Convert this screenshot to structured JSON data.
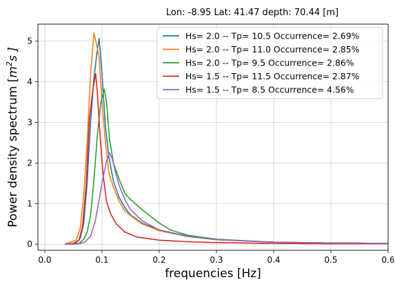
{
  "chart_data": {
    "type": "line",
    "title": "Lon: -8.95 Lat: 41.47 depth: 70.44 [m]",
    "xlabel": "frequencies [Hz]",
    "ylabel": {
      "prefix": "Power density spectrum [",
      "unit": "m",
      "sup": "2",
      "suffix": "s ]"
    },
    "xlim": [
      -0.012,
      0.6
    ],
    "ylim": [
      -0.15,
      5.42
    ],
    "xticks": [
      0.0,
      0.1,
      0.2,
      0.3,
      0.4,
      0.5,
      0.6
    ],
    "xtick_labels": [
      "0.0",
      "0.1",
      "0.2",
      "0.3",
      "0.4",
      "0.5",
      "0.6"
    ],
    "yticks": [
      0,
      1,
      2,
      3,
      4,
      5
    ],
    "ytick_labels": [
      "0",
      "1",
      "2",
      "3",
      "4",
      "5"
    ],
    "grid": true,
    "legend_position": "top-right",
    "series": [
      {
        "name": "Hs= 2.0 -- Tp= 10.5 Occurrence= 2.69%",
        "color": "#1f77b4",
        "x": [
          0.035,
          0.045,
          0.055,
          0.062,
          0.068,
          0.074,
          0.08,
          0.086,
          0.091,
          0.095,
          0.1,
          0.106,
          0.112,
          0.12,
          0.13,
          0.14,
          0.15,
          0.17,
          0.2,
          0.25,
          0.3,
          0.4,
          0.5,
          0.6
        ],
        "y": [
          0.0,
          0.01,
          0.03,
          0.15,
          0.5,
          1.5,
          3.0,
          4.1,
          4.7,
          5.07,
          4.2,
          2.9,
          2.15,
          1.55,
          1.15,
          0.9,
          0.72,
          0.52,
          0.35,
          0.2,
          0.12,
          0.05,
          0.03,
          0.02
        ]
      },
      {
        "name": "Hs= 2.0 -- Tp= 11.0 Occurrence= 2.85%",
        "color": "#ff7f0e",
        "x": [
          0.035,
          0.045,
          0.055,
          0.062,
          0.068,
          0.074,
          0.08,
          0.086,
          0.09,
          0.095,
          0.1,
          0.106,
          0.112,
          0.12,
          0.13,
          0.14,
          0.15,
          0.17,
          0.2,
          0.25,
          0.3,
          0.4,
          0.5,
          0.6
        ],
        "y": [
          0.0,
          0.05,
          0.1,
          0.4,
          1.2,
          2.5,
          4.2,
          5.2,
          4.95,
          4.6,
          3.5,
          2.5,
          1.75,
          1.4,
          1.05,
          0.82,
          0.7,
          0.5,
          0.33,
          0.19,
          0.11,
          0.05,
          0.03,
          0.02
        ]
      },
      {
        "name": "Hs= 2.0 -- Tp= 9.5 Occurrence= 2.86%",
        "color": "#2ca02c",
        "x": [
          0.035,
          0.05,
          0.06,
          0.068,
          0.074,
          0.08,
          0.086,
          0.092,
          0.098,
          0.104,
          0.108,
          0.113,
          0.12,
          0.13,
          0.14,
          0.15,
          0.17,
          0.2,
          0.22,
          0.25,
          0.3,
          0.35,
          0.4,
          0.5,
          0.6
        ],
        "y": [
          0.0,
          0.0,
          0.02,
          0.12,
          0.3,
          0.7,
          1.6,
          2.7,
          3.5,
          3.82,
          3.5,
          2.6,
          2.0,
          1.6,
          1.25,
          1.1,
          0.85,
          0.52,
          0.35,
          0.22,
          0.12,
          0.08,
          0.05,
          0.03,
          0.02
        ]
      },
      {
        "name": "Hs= 1.5 -- Tp= 11.5 Occurrence= 2.87%",
        "color": "#d62728",
        "x": [
          0.035,
          0.05,
          0.06,
          0.066,
          0.072,
          0.078,
          0.084,
          0.089,
          0.092,
          0.097,
          0.102,
          0.108,
          0.115,
          0.125,
          0.14,
          0.16,
          0.2,
          0.25,
          0.3,
          0.4,
          0.5,
          0.6
        ],
        "y": [
          0.0,
          0.02,
          0.1,
          0.45,
          1.4,
          3.1,
          3.8,
          4.2,
          3.7,
          2.6,
          1.7,
          1.05,
          0.75,
          0.5,
          0.3,
          0.18,
          0.1,
          0.06,
          0.04,
          0.02,
          0.01,
          0.01
        ]
      },
      {
        "name": "Hs= 1.5 -- Tp= 8.5 Occurrence= 4.56%",
        "color": "#9467bd",
        "x": [
          0.035,
          0.05,
          0.06,
          0.07,
          0.08,
          0.088,
          0.095,
          0.102,
          0.108,
          0.113,
          0.118,
          0.124,
          0.13,
          0.14,
          0.15,
          0.17,
          0.2,
          0.25,
          0.3,
          0.4,
          0.5,
          0.6
        ],
        "y": [
          0.0,
          0.0,
          0.01,
          0.05,
          0.2,
          0.55,
          1.1,
          1.65,
          2.05,
          2.25,
          2.1,
          1.75,
          1.45,
          1.1,
          0.85,
          0.58,
          0.35,
          0.19,
          0.11,
          0.05,
          0.03,
          0.02
        ]
      }
    ]
  }
}
